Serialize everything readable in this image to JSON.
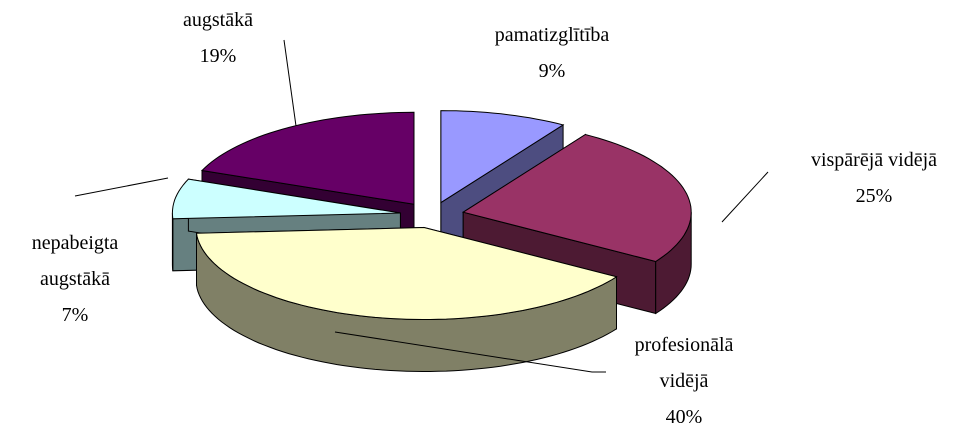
{
  "chart_data": {
    "type": "pie3d",
    "categories": [
      "pamatizglītība",
      "vispārējā vidējā",
      "profesionālā vidējā",
      "nepabeigta augstākā",
      "augstākā"
    ],
    "values": [
      9,
      25,
      40,
      7,
      19
    ],
    "value_labels": [
      "9%",
      "25%",
      "40%",
      "7%",
      "19%"
    ],
    "colors": [
      "#9999ff",
      "#993366",
      "#ffffcc",
      "#ccffff",
      "#660066"
    ]
  }
}
